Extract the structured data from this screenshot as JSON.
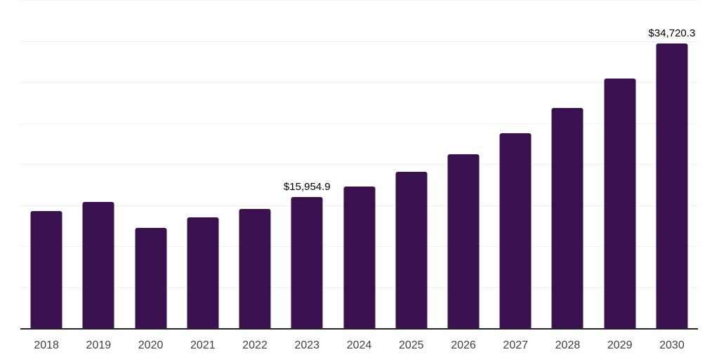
{
  "chart_data": {
    "type": "bar",
    "title": "",
    "xlabel": "",
    "ylabel": "",
    "categories": [
      "2018",
      "2019",
      "2020",
      "2021",
      "2022",
      "2023",
      "2024",
      "2025",
      "2026",
      "2027",
      "2028",
      "2029",
      "2030"
    ],
    "values": [
      14300,
      15420,
      12250,
      13530,
      14560,
      15954.9,
      17300,
      19100,
      21240,
      23720,
      26810,
      30400,
      34720.3
    ],
    "labeled_points": [
      {
        "category": "2023",
        "label": "$15,954.9"
      },
      {
        "category": "2030",
        "label": "$34,720.3"
      }
    ],
    "ylim": [
      0,
      40000
    ],
    "gridline_step": 5000,
    "grid": true,
    "y_tick_labels_visible": false,
    "legend": "none",
    "colors": {
      "bar": "#38114e",
      "gridline": "#f1f1f1",
      "axis_line": "#262626",
      "tick_label": "#404040",
      "data_label": "#000000",
      "background": "#ffffff"
    }
  }
}
